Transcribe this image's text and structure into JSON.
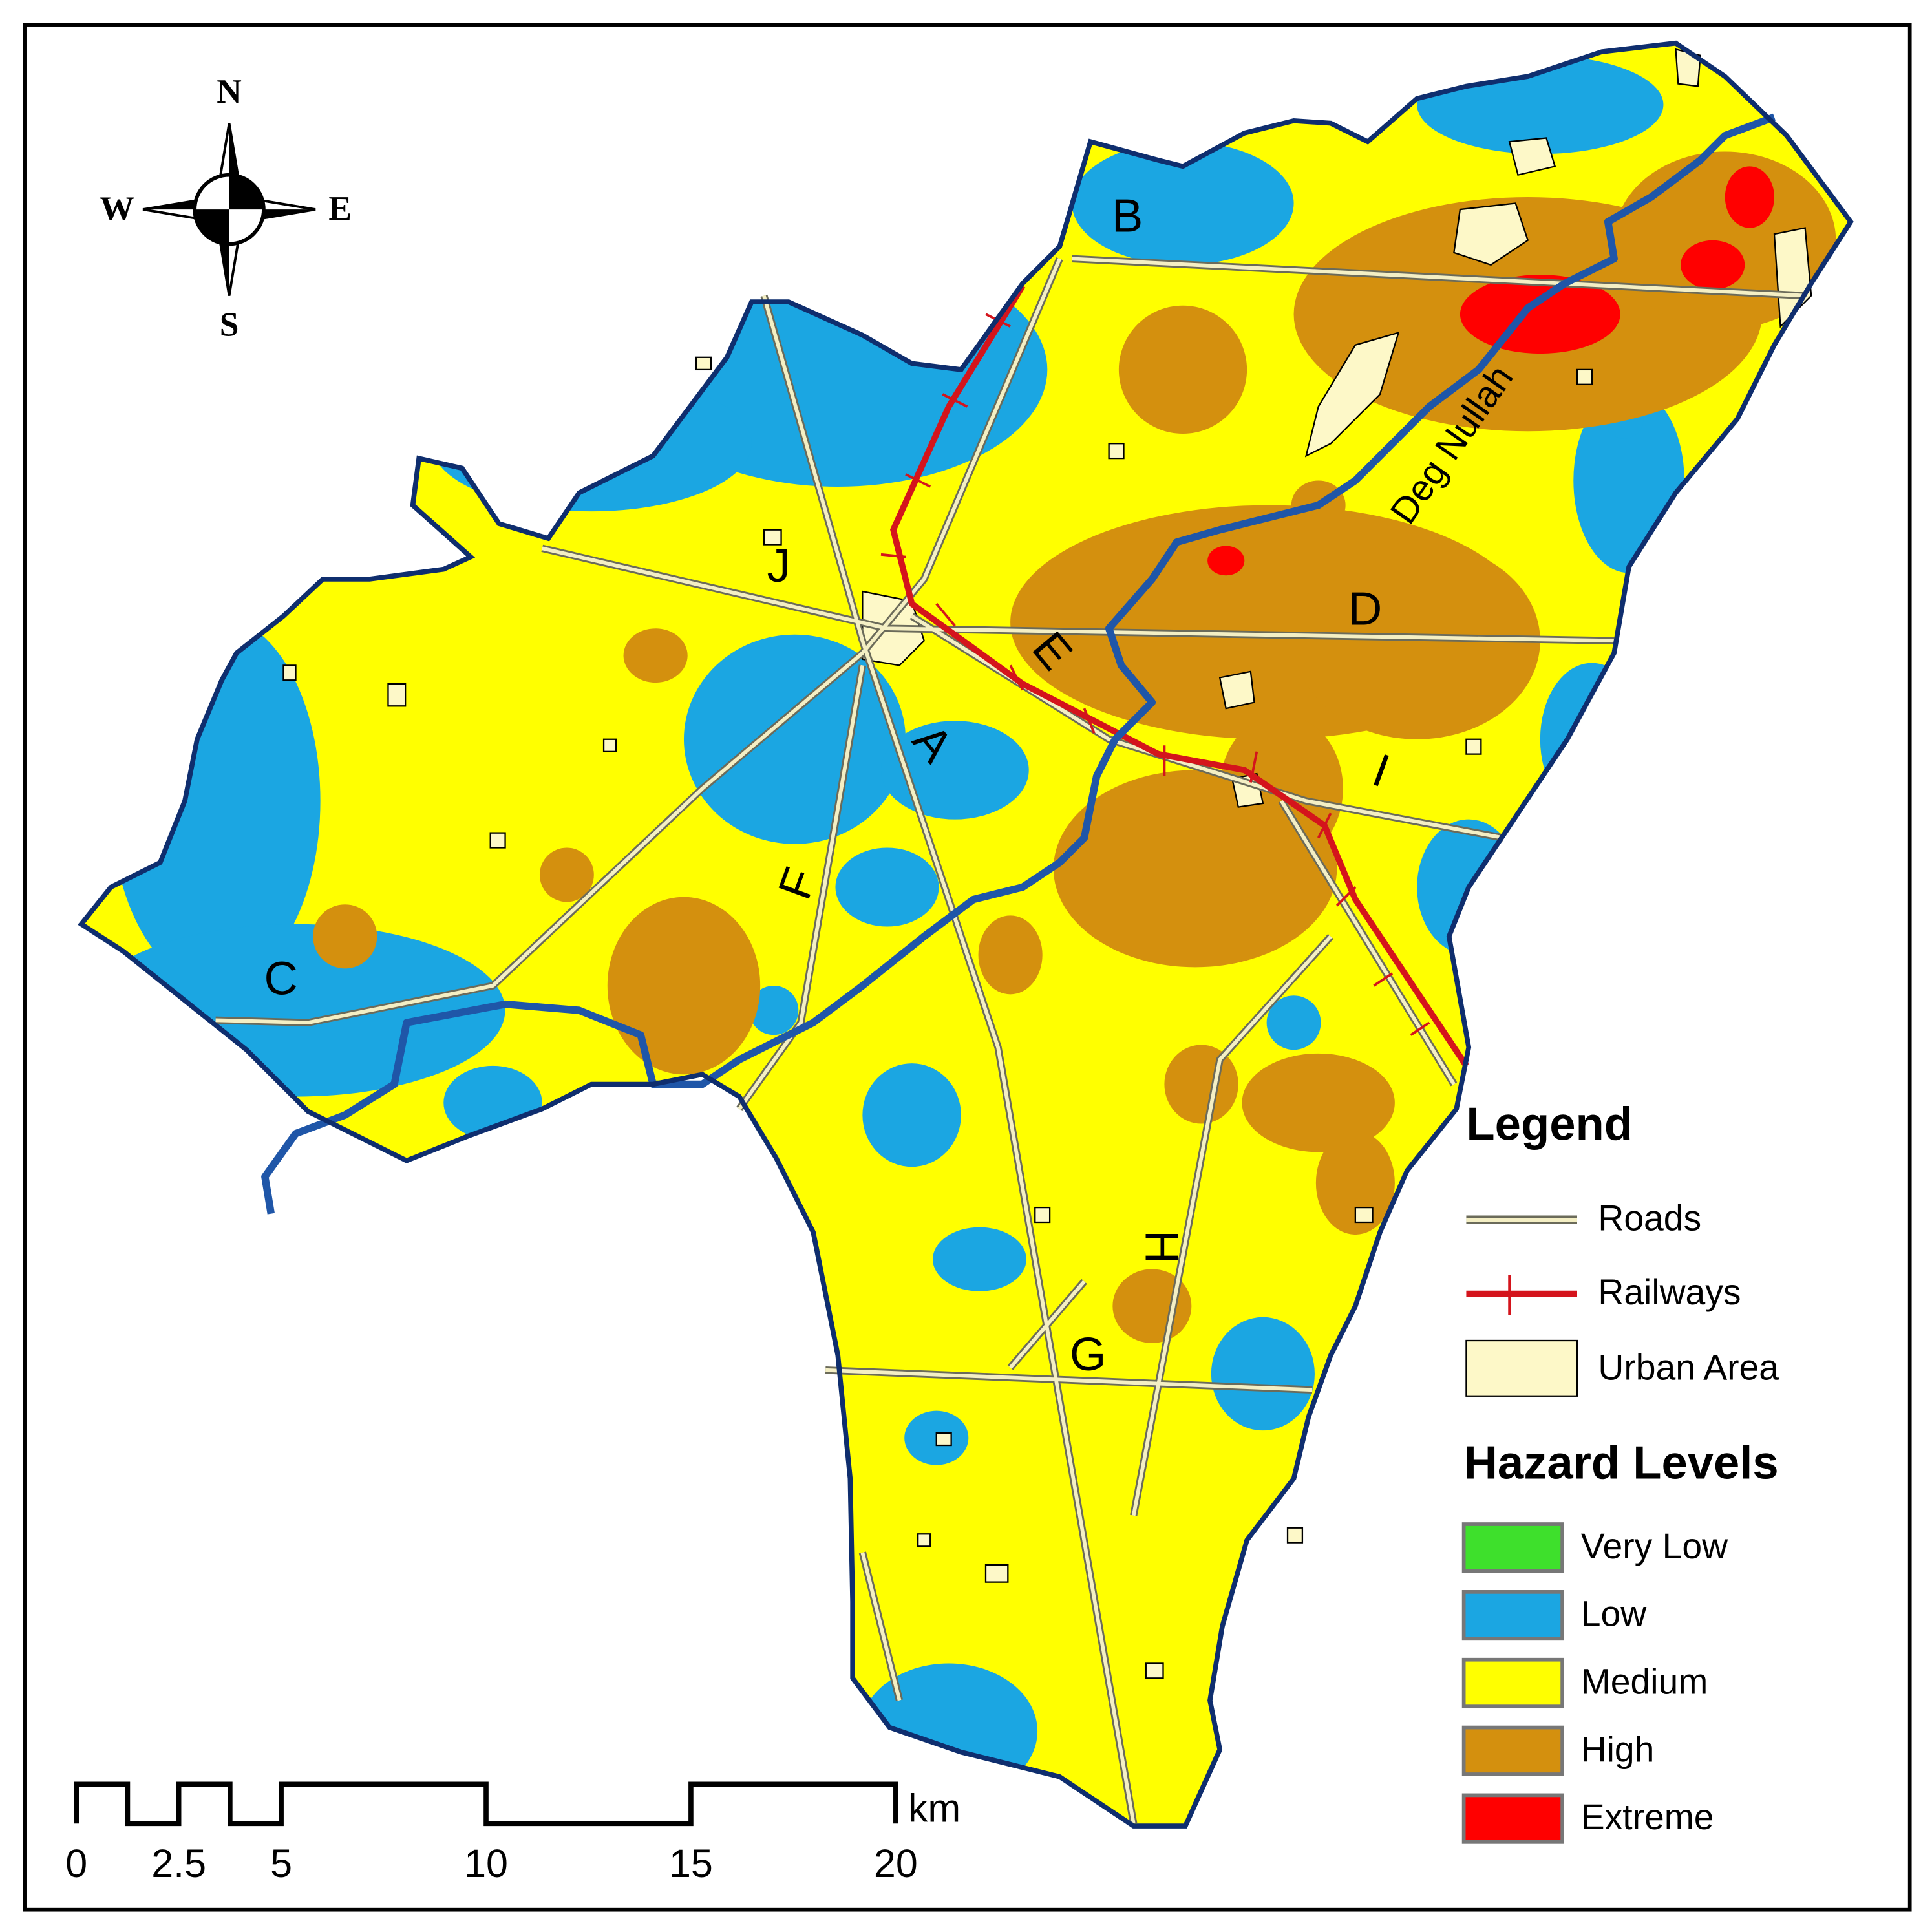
{
  "compass": {
    "north": "N",
    "south": "S",
    "east": "E",
    "west": "W"
  },
  "zone_labels": [
    "A",
    "B",
    "C",
    "D",
    "E",
    "F",
    "G",
    "H",
    "I",
    "J"
  ],
  "river_label": "Deg Nullah",
  "legend": {
    "title": "Legend",
    "items": [
      "Roads",
      "Railways",
      "Urban Area"
    ]
  },
  "hazard_levels": {
    "title": "Hazard Levels",
    "items": [
      {
        "label": "Very Low",
        "color": "#3ee02c"
      },
      {
        "label": "Low",
        "color": "#1ba6e2"
      },
      {
        "label": "Medium",
        "color": "#ffff00"
      },
      {
        "label": "High",
        "color": "#d4900e"
      },
      {
        "label": "Extreme",
        "color": "#ff0000"
      }
    ]
  },
  "scale_bar": {
    "ticks": [
      0,
      2.5,
      5,
      10,
      15,
      20
    ],
    "unit": "km"
  }
}
